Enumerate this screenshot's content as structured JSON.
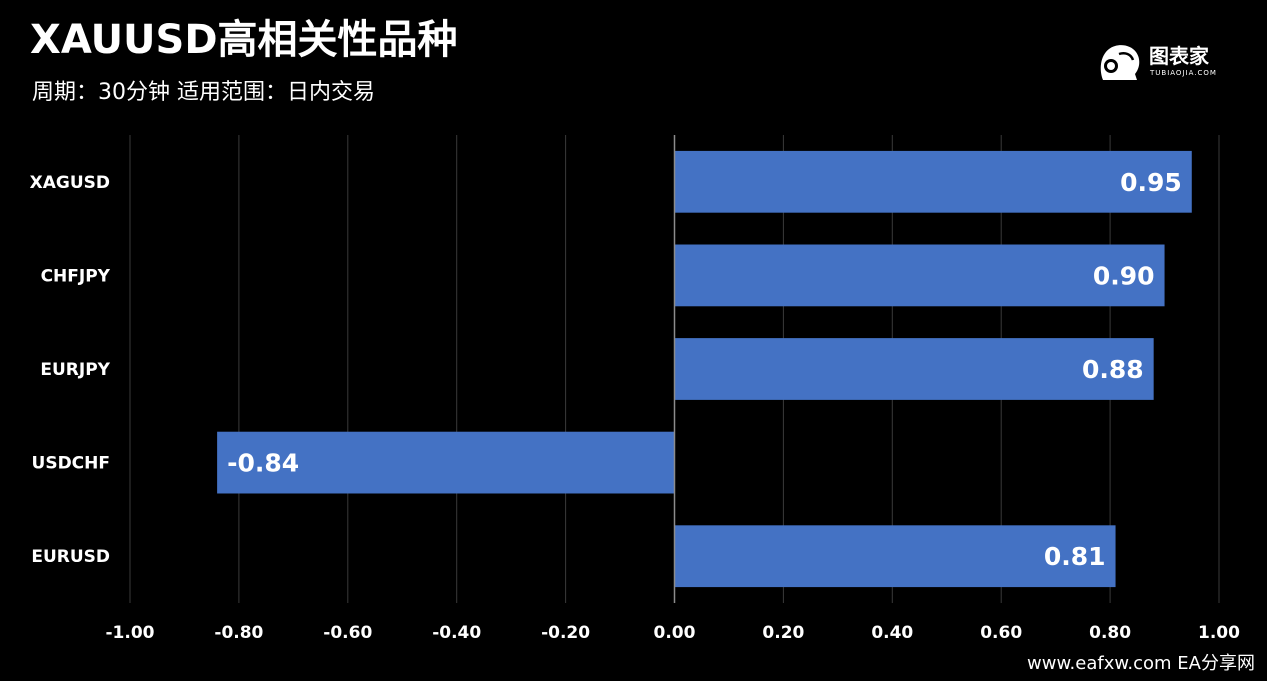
{
  "header": {
    "title": "XAUUSD高相关性品种",
    "subtitle": "周期：30分钟  适用范围：日内交易"
  },
  "brand": {
    "name": "图表家",
    "sub": "TUBIAOJIA.COM",
    "icon": "head-logo-icon"
  },
  "footer": {
    "watermark": "www.eafxw.com   EA分享网"
  },
  "colors": {
    "background": "#000000",
    "bar": "#4472c4",
    "grid": "#3a3a3a",
    "axis": "#8c8c8c",
    "text": "#ffffff"
  },
  "chart_data": {
    "type": "bar",
    "orientation": "horizontal",
    "categories": [
      "XAGUSD",
      "CHFJPY",
      "EURJPY",
      "USDCHF",
      "EURUSD"
    ],
    "values": [
      0.95,
      0.9,
      0.88,
      -0.84,
      0.81
    ],
    "value_labels": [
      "0.95",
      "0.90",
      "0.88",
      "-0.84",
      "0.81"
    ],
    "xlim": [
      -1.0,
      1.0
    ],
    "xticks": [
      -1.0,
      -0.8,
      -0.6,
      -0.4,
      -0.2,
      0.0,
      0.2,
      0.4,
      0.6,
      0.8,
      1.0
    ],
    "xtick_labels": [
      "-1.00",
      "-0.80",
      "-0.60",
      "-0.40",
      "-0.20",
      "0.00",
      "0.20",
      "0.40",
      "0.60",
      "0.80",
      "1.00"
    ],
    "grid": true,
    "legend": "none",
    "title": "",
    "xlabel": "",
    "ylabel": ""
  }
}
